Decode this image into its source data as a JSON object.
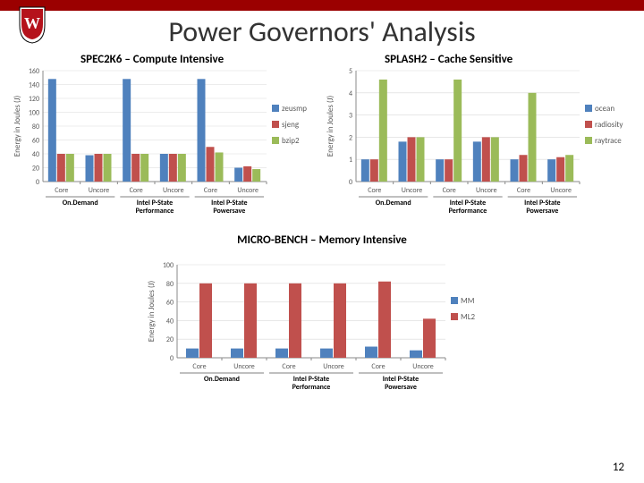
{
  "page": {
    "title": "Power Governors' Analysis",
    "number": "12"
  },
  "colors": {
    "series_blue": "#4f81bd",
    "series_red": "#c0504d",
    "series_green": "#9bbb59",
    "axis": "#898989",
    "grid": "#d9d9d9",
    "text": "#595959",
    "crest_red": "#b5121b",
    "crest_gold": "#d4af37"
  },
  "groups": {
    "labels": [
      "Core",
      "Uncore",
      "Core",
      "Uncore",
      "Core",
      "Uncore"
    ],
    "secondary": [
      "On.Demand",
      "Intel P-State\nPerformance",
      "Intel P-State\nPowersave"
    ]
  },
  "chart1": {
    "title": "SPEC2K6 – Compute Intensive",
    "ylabel": "Energy in Joules (J)",
    "ylim": [
      0,
      160
    ],
    "ytick_step": 20,
    "label_fontsize": 9,
    "tick_fontsize": 8,
    "bar_width": 0.24,
    "series": [
      {
        "name": "zeusmp",
        "color": "#4f81bd",
        "values": [
          148,
          38,
          148,
          40,
          148,
          20
        ]
      },
      {
        "name": "sjeng",
        "color": "#c0504d",
        "values": [
          40,
          40,
          40,
          40,
          50,
          22
        ]
      },
      {
        "name": "bzip2",
        "color": "#9bbb59",
        "values": [
          40,
          40,
          40,
          40,
          42,
          18
        ]
      }
    ]
  },
  "chart2": {
    "title": "SPLASH2 – Cache Sensitive",
    "ylabel": "Energy in Joules (J)",
    "ylim": [
      0,
      5
    ],
    "ytick_step": 1,
    "label_fontsize": 9,
    "tick_fontsize": 8,
    "bar_width": 0.24,
    "series": [
      {
        "name": "ocean",
        "color": "#4f81bd",
        "values": [
          1.0,
          1.8,
          1.0,
          1.8,
          1.0,
          1.0
        ]
      },
      {
        "name": "radiosity",
        "color": "#c0504d",
        "values": [
          1.0,
          2.0,
          1.0,
          2.0,
          1.2,
          1.1
        ]
      },
      {
        "name": "raytrace",
        "color": "#9bbb59",
        "values": [
          4.6,
          2.0,
          4.6,
          2.0,
          4.0,
          1.2
        ]
      }
    ]
  },
  "chart3": {
    "title": "MICRO-BENCH – Memory Intensive",
    "ylabel": "Energy in Joules (J)",
    "ylim": [
      0,
      100
    ],
    "ytick_step": 20,
    "label_fontsize": 9,
    "tick_fontsize": 8,
    "bar_width": 0.3,
    "series": [
      {
        "name": "MM",
        "color": "#4f81bd",
        "values": [
          10,
          10,
          10,
          10,
          12,
          8
        ]
      },
      {
        "name": "ML2",
        "color": "#c0504d",
        "values": [
          80,
          80,
          80,
          80,
          82,
          42
        ]
      }
    ]
  }
}
